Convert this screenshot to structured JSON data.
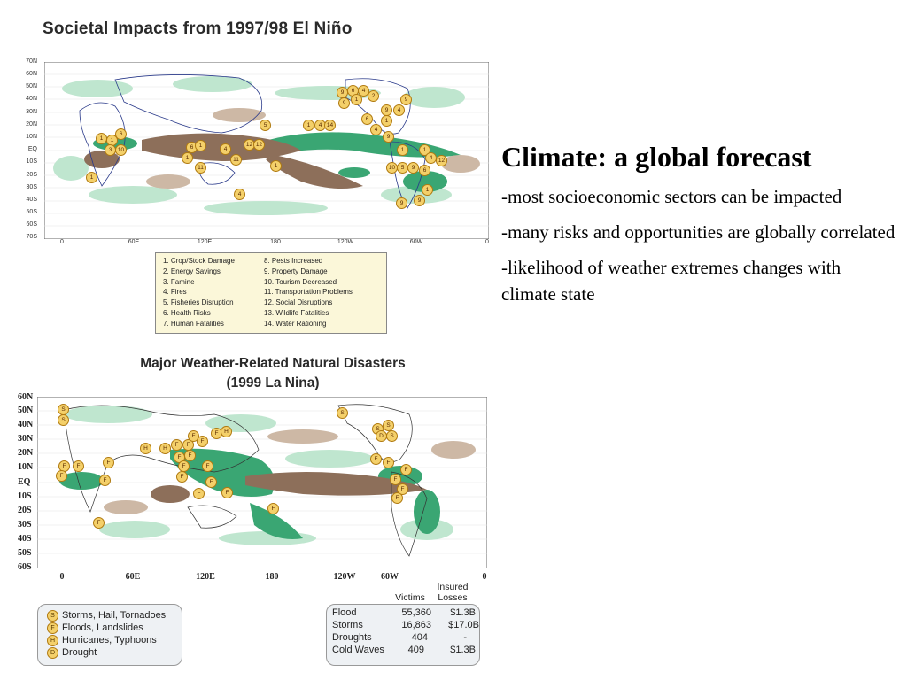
{
  "map1": {
    "title": "Societal Impacts from 1997/98 El Niño",
    "lat_labels": [
      "70N",
      "60N",
      "50N",
      "40N",
      "30N",
      "20N",
      "10N",
      "EQ",
      "10S",
      "20S",
      "30S",
      "40S",
      "50S",
      "60S",
      "70S"
    ],
    "lon_labels": [
      "0",
      "60E",
      "120E",
      "180",
      "120W",
      "60W",
      "0"
    ],
    "legend_col1": [
      "1. Crop/Stock Damage",
      "2. Energy Savings",
      "3. Famine",
      "4. Fires",
      "5. Fisheries Disruption",
      "6. Health Risks",
      "7. Human Fatalities"
    ],
    "legend_col2": [
      "8. Pests Increased",
      "9. Property Damage",
      "10. Tourism Decreased",
      "11. Transportation Problems",
      "12. Social Disruptions",
      "13. Wildlife Fatalities",
      "14. Water Rationing"
    ]
  },
  "map2": {
    "title_line1": "Major Weather-Related Natural Disasters",
    "title_line2": "(1999 La Nina)",
    "lat_labels": [
      "60N",
      "50N",
      "40N",
      "30N",
      "20N",
      "10N",
      "EQ",
      "10S",
      "20S",
      "30S",
      "40S",
      "50S",
      "60S"
    ],
    "lon_labels": [
      "0",
      "60E",
      "120E",
      "180",
      "120W",
      "60W",
      "0"
    ],
    "legend": [
      {
        "symbol": "S",
        "label": "Storms, Hail, Tornadoes"
      },
      {
        "symbol": "F",
        "label": "Floods, Landslides"
      },
      {
        "symbol": "H",
        "label": "Hurricanes, Typhoons"
      },
      {
        "symbol": "D",
        "label": "Drought"
      }
    ],
    "table": {
      "col_victims": "Victims",
      "col_losses_line1": "Insured",
      "col_losses_line2": "Losses",
      "rows": [
        {
          "type": "Flood",
          "victims": "55,360",
          "losses": "$1.3B"
        },
        {
          "type": "Storms",
          "victims": "16,863",
          "losses": "$17.0B"
        },
        {
          "type": "Droughts",
          "victims": "404",
          "losses": "-"
        },
        {
          "type": "Cold Waves",
          "victims": "409",
          "losses": "$1.3B"
        }
      ]
    }
  },
  "text": {
    "headline": "Climate: a global forecast",
    "bullets": [
      "-most socioeconomic sectors can be impacted",
      "-many risks and opportunities are globally correlated",
      "-likelihood of weather extremes changes with climate state"
    ]
  },
  "colors": {
    "wet": "#2f9e6a",
    "wet_light": "#a9dcc0",
    "dry": "#8a6a55",
    "dry_light": "#d9c7b5",
    "marker": "#f4d06a"
  }
}
